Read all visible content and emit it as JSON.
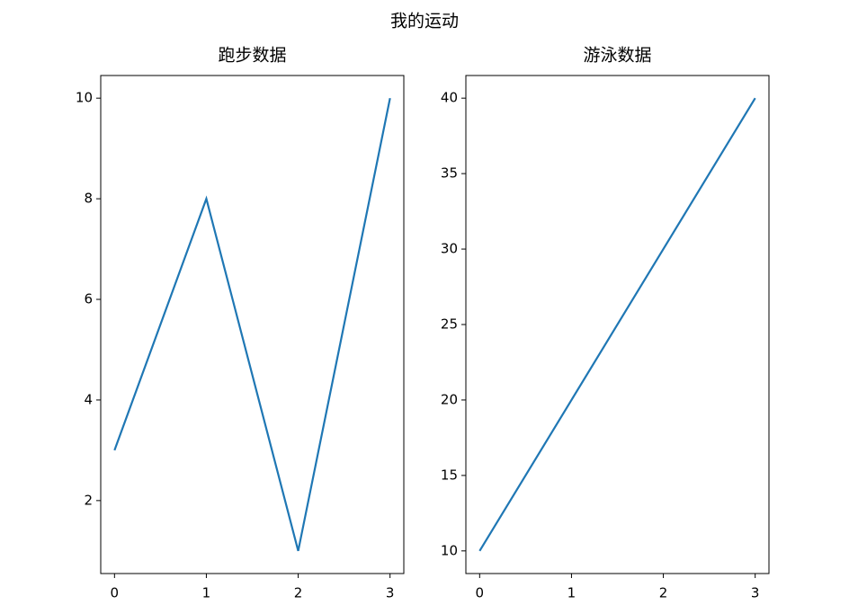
{
  "title": "我的运动",
  "chart_data": [
    {
      "type": "line",
      "title": "跑步数据",
      "x": [
        0,
        1,
        2,
        3
      ],
      "series": [
        {
          "color": "#1f77b4",
          "values": [
            3,
            8,
            1,
            10
          ]
        }
      ],
      "xlim": [
        -0.15,
        3.15
      ],
      "xticks": [
        0,
        1,
        2,
        3
      ],
      "ylim": [
        0.55,
        10.45
      ],
      "yticks": [
        2,
        4,
        6,
        8,
        10
      ],
      "grid": false
    },
    {
      "type": "line",
      "title": "游泳数据",
      "x": [
        0,
        1,
        2,
        3
      ],
      "series": [
        {
          "color": "#1f77b4",
          "values": [
            10,
            20,
            30,
            40
          ]
        }
      ],
      "xlim": [
        -0.15,
        3.15
      ],
      "xticks": [
        0,
        1,
        2,
        3
      ],
      "ylim": [
        8.5,
        41.5
      ],
      "yticks": [
        10,
        15,
        20,
        25,
        30,
        35,
        40
      ],
      "grid": false
    }
  ]
}
